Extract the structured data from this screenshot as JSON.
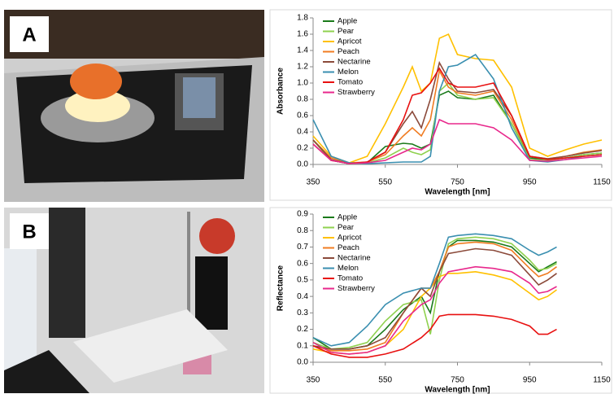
{
  "chart_data": [
    {
      "type": "line",
      "panel_label": "A",
      "xlabel": "Wavelength [nm]",
      "ylabel": "Absorbance",
      "x": [
        350,
        400,
        450,
        500,
        550,
        600,
        625,
        650,
        675,
        700,
        725,
        750,
        800,
        850,
        900,
        950,
        1000,
        1050,
        1100,
        1150
      ],
      "xlim": [
        350,
        1150
      ],
      "xticks": [
        350,
        550,
        750,
        950,
        1150
      ],
      "ylim": [
        0,
        1.8
      ],
      "yticks": [
        {
          "value": 0,
          "label": "0.0"
        },
        {
          "value": 0.2,
          "label": "0.2"
        },
        {
          "value": 0.4,
          "label": "0.4"
        },
        {
          "value": 0.6,
          "label": "0.6"
        },
        {
          "value": 0.8,
          "label": "0.8"
        },
        {
          "value": 1,
          "label": "1.0"
        },
        {
          "value": 1.2,
          "label": "1.2"
        },
        {
          "value": 1.4,
          "label": "1.4"
        },
        {
          "value": 1.6,
          "label": "1.6"
        },
        {
          "value": 1.8,
          "label": "1.8"
        }
      ],
      "legend": "upper left",
      "series": [
        {
          "name": "Apple",
          "color": "#1a7a1a",
          "values": [
            0.3,
            0.05,
            0.01,
            0.02,
            0.22,
            0.26,
            0.25,
            0.2,
            0.25,
            0.85,
            0.9,
            0.82,
            0.8,
            0.85,
            0.5,
            0.08,
            0.06,
            0.08,
            0.12,
            0.14
          ]
        },
        {
          "name": "Pear",
          "color": "#8fd14f",
          "values": [
            0.3,
            0.05,
            0.01,
            0.02,
            0.08,
            0.2,
            0.15,
            0.12,
            0.18,
            0.9,
            1.0,
            0.85,
            0.8,
            0.82,
            0.5,
            0.06,
            0.05,
            0.08,
            0.12,
            0.14
          ]
        },
        {
          "name": "Apricot",
          "color": "#ffc000",
          "values": [
            0.35,
            0.1,
            0.02,
            0.1,
            0.5,
            0.95,
            1.2,
            0.9,
            1.0,
            1.55,
            1.6,
            1.35,
            1.3,
            1.28,
            0.95,
            0.2,
            0.1,
            0.18,
            0.25,
            0.3
          ]
        },
        {
          "name": "Peach",
          "color": "#f07c22",
          "values": [
            0.3,
            0.08,
            0.02,
            0.03,
            0.12,
            0.35,
            0.45,
            0.35,
            0.55,
            1.15,
            0.95,
            0.88,
            0.85,
            0.9,
            0.55,
            0.1,
            0.07,
            0.1,
            0.15,
            0.18
          ]
        },
        {
          "name": "Nectarine",
          "color": "#8b4a3a",
          "values": [
            0.3,
            0.06,
            0.01,
            0.03,
            0.15,
            0.5,
            0.65,
            0.45,
            0.8,
            1.25,
            1.05,
            0.9,
            0.88,
            0.92,
            0.6,
            0.1,
            0.07,
            0.1,
            0.14,
            0.17
          ]
        },
        {
          "name": "Melon",
          "color": "#3a8fb0",
          "values": [
            0.55,
            0.1,
            0.02,
            0.01,
            0.02,
            0.03,
            0.03,
            0.03,
            0.1,
            0.9,
            1.2,
            1.22,
            1.35,
            1.05,
            0.45,
            0.05,
            0.03,
            0.06,
            0.1,
            0.12
          ]
        },
        {
          "name": "Tomato",
          "color": "#e81010",
          "values": [
            0.25,
            0.05,
            0.01,
            0.03,
            0.15,
            0.55,
            0.85,
            0.88,
            1.0,
            1.18,
            1.0,
            0.95,
            0.95,
            1.0,
            0.6,
            0.1,
            0.06,
            0.08,
            0.1,
            0.12
          ]
        },
        {
          "name": "Strawberry",
          "color": "#e8288c",
          "values": [
            0.25,
            0.05,
            0.01,
            0.02,
            0.05,
            0.15,
            0.2,
            0.18,
            0.25,
            0.55,
            0.5,
            0.5,
            0.5,
            0.45,
            0.3,
            0.05,
            0.04,
            0.06,
            0.08,
            0.1
          ]
        }
      ]
    },
    {
      "type": "line",
      "panel_label": "B",
      "xlabel": "Wavelength [nm]",
      "ylabel": "Reflectance",
      "x": [
        350,
        400,
        450,
        500,
        550,
        600,
        650,
        675,
        700,
        725,
        750,
        800,
        850,
        900,
        950,
        975,
        1000,
        1025
      ],
      "xlim": [
        350,
        1150
      ],
      "xticks": [
        350,
        550,
        750,
        950,
        1150
      ],
      "ylim": [
        0,
        0.9
      ],
      "yticks": [
        {
          "value": 0,
          "label": "0.0"
        },
        {
          "value": 0.1,
          "label": "0.1"
        },
        {
          "value": 0.2,
          "label": "0.2"
        },
        {
          "value": 0.3,
          "label": "0.3"
        },
        {
          "value": 0.4,
          "label": "0.4"
        },
        {
          "value": 0.5,
          "label": "0.5"
        },
        {
          "value": 0.6,
          "label": "0.6"
        },
        {
          "value": 0.7,
          "label": "0.7"
        },
        {
          "value": 0.8,
          "label": "0.8"
        },
        {
          "value": 0.9,
          "label": "0.9"
        }
      ],
      "legend": "upper left",
      "series": [
        {
          "name": "Apple",
          "color": "#1a7a1a",
          "values": [
            0.15,
            0.08,
            0.08,
            0.1,
            0.2,
            0.32,
            0.4,
            0.3,
            0.55,
            0.7,
            0.74,
            0.74,
            0.73,
            0.7,
            0.6,
            0.55,
            0.58,
            0.61
          ]
        },
        {
          "name": "Pear",
          "color": "#8fd14f",
          "values": [
            0.12,
            0.08,
            0.09,
            0.12,
            0.25,
            0.35,
            0.38,
            0.17,
            0.5,
            0.72,
            0.75,
            0.76,
            0.75,
            0.72,
            0.62,
            0.56,
            0.57,
            0.6
          ]
        },
        {
          "name": "Apricot",
          "color": "#ffc000",
          "values": [
            0.08,
            0.06,
            0.05,
            0.06,
            0.1,
            0.2,
            0.4,
            0.45,
            0.52,
            0.54,
            0.54,
            0.55,
            0.53,
            0.5,
            0.42,
            0.38,
            0.4,
            0.44
          ]
        },
        {
          "name": "Peach",
          "color": "#f07c22",
          "values": [
            0.1,
            0.07,
            0.07,
            0.08,
            0.12,
            0.3,
            0.45,
            0.45,
            0.55,
            0.7,
            0.72,
            0.73,
            0.72,
            0.68,
            0.57,
            0.52,
            0.54,
            0.58
          ]
        },
        {
          "name": "Nectarine",
          "color": "#8b4a3a",
          "values": [
            0.1,
            0.08,
            0.08,
            0.1,
            0.15,
            0.3,
            0.45,
            0.4,
            0.55,
            0.66,
            0.67,
            0.69,
            0.68,
            0.65,
            0.53,
            0.47,
            0.5,
            0.54
          ]
        },
        {
          "name": "Melon",
          "color": "#3a8fb0",
          "values": [
            0.15,
            0.1,
            0.12,
            0.22,
            0.35,
            0.42,
            0.45,
            0.45,
            0.6,
            0.76,
            0.77,
            0.78,
            0.77,
            0.75,
            0.68,
            0.65,
            0.67,
            0.7
          ]
        },
        {
          "name": "Tomato",
          "color": "#e81010",
          "values": [
            0.1,
            0.05,
            0.03,
            0.03,
            0.05,
            0.08,
            0.15,
            0.2,
            0.28,
            0.29,
            0.29,
            0.29,
            0.28,
            0.26,
            0.22,
            0.17,
            0.17,
            0.2
          ]
        },
        {
          "name": "Strawberry",
          "color": "#e8288c",
          "values": [
            0.12,
            0.06,
            0.05,
            0.06,
            0.1,
            0.25,
            0.35,
            0.38,
            0.48,
            0.55,
            0.56,
            0.58,
            0.57,
            0.55,
            0.48,
            0.42,
            0.43,
            0.46
          ]
        }
      ]
    }
  ]
}
